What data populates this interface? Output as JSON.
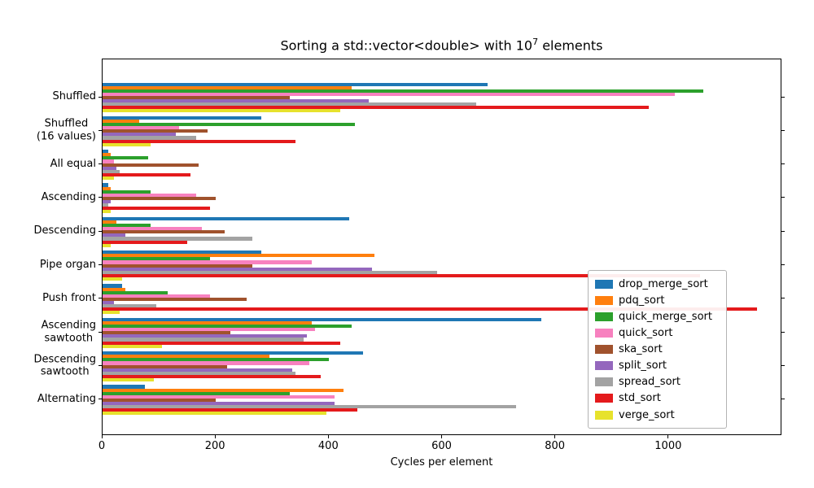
{
  "chart_data": {
    "type": "bar",
    "orientation": "horizontal",
    "title": "Sorting a std::vector<double> with 10^7 elements",
    "title_parts": {
      "prefix": "Sorting a std::vector<double> with 10",
      "superscript": "7",
      "suffix": " elements"
    },
    "xlabel": "Cycles per element",
    "xlim": [
      0,
      1200
    ],
    "xticks": [
      0,
      200,
      400,
      600,
      800,
      1000
    ],
    "grid": false,
    "legend_position": "inside lower right",
    "categories": [
      "Shuffled",
      "Shuffled\n(16 values)",
      "All equal",
      "Ascending",
      "Descending",
      "Pipe organ",
      "Push front",
      "Ascending\nsawtooth",
      "Descending\nsawtooth",
      "Alternating"
    ],
    "series": [
      {
        "name": "drop_merge_sort",
        "color": "#1f77b4",
        "values": [
          680,
          280,
          10,
          10,
          435,
          280,
          35,
          775,
          460,
          75
        ]
      },
      {
        "name": "pdq_sort",
        "color": "#ff7f0e",
        "values": [
          440,
          65,
          15,
          15,
          25,
          480,
          40,
          370,
          295,
          425
        ]
      },
      {
        "name": "quick_merge_sort",
        "color": "#2ca02c",
        "values": [
          1060,
          445,
          80,
          85,
          85,
          190,
          115,
          440,
          400,
          330
        ]
      },
      {
        "name": "quick_sort",
        "color": "#f781bf",
        "values": [
          1010,
          135,
          20,
          165,
          175,
          370,
          190,
          375,
          365,
          410
        ]
      },
      {
        "name": "ska_sort",
        "color": "#a0522d",
        "values": [
          330,
          185,
          170,
          200,
          215,
          265,
          255,
          225,
          220,
          200
        ]
      },
      {
        "name": "split_sort",
        "color": "#9467bd",
        "values": [
          470,
          130,
          25,
          15,
          40,
          475,
          20,
          360,
          335,
          410
        ]
      },
      {
        "name": "spread_sort",
        "color": "#a3a3a3",
        "values": [
          660,
          165,
          30,
          10,
          265,
          590,
          95,
          355,
          340,
          730
        ]
      },
      {
        "name": "std_sort",
        "color": "#e41a1c",
        "values": [
          965,
          340,
          155,
          190,
          150,
          1055,
          1155,
          420,
          385,
          450
        ]
      },
      {
        "name": "verge_sort",
        "color": "#e7e22c",
        "values": [
          420,
          85,
          20,
          15,
          15,
          35,
          30,
          105,
          90,
          395
        ]
      }
    ]
  }
}
